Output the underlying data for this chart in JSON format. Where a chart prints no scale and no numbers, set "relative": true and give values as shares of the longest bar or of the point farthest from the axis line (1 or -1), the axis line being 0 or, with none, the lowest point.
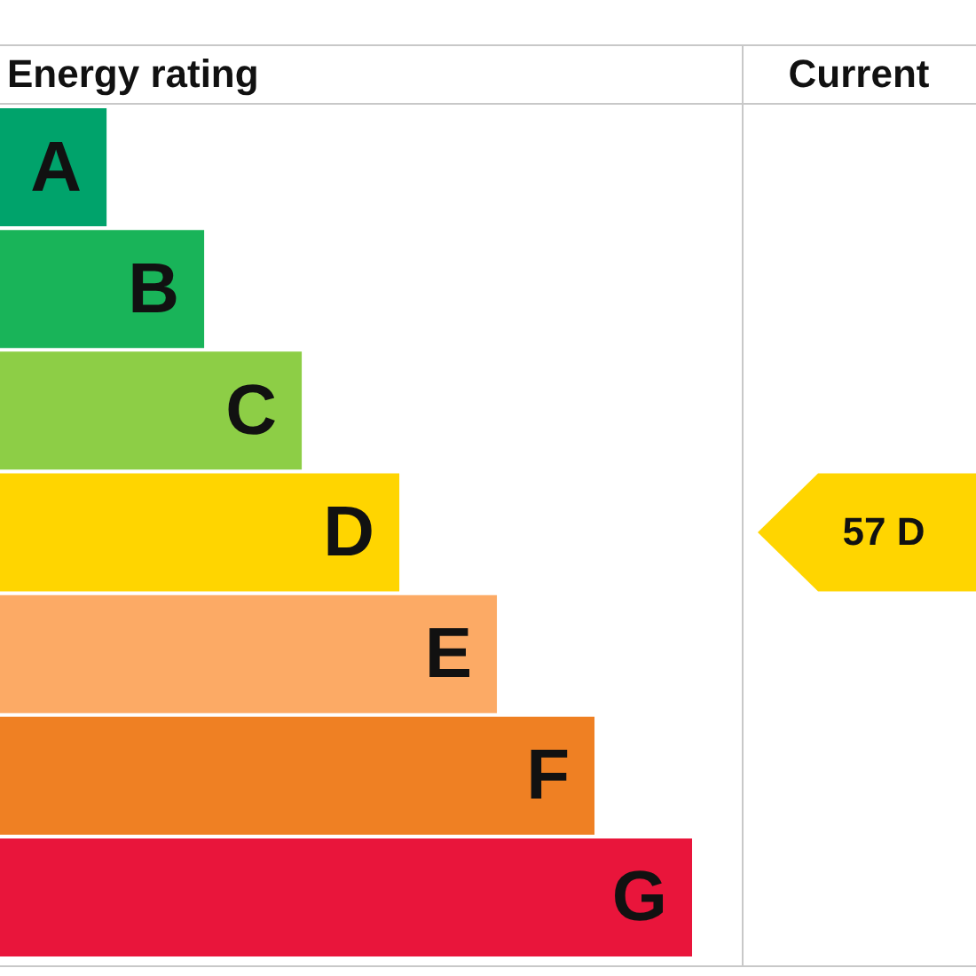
{
  "chart_data": {
    "type": "bar",
    "orientation": "horizontal",
    "relative": true,
    "title": "Energy rating",
    "categories": [
      "A",
      "B",
      "C",
      "D",
      "E",
      "F",
      "G"
    ],
    "values": [
      0.154,
      0.295,
      0.436,
      0.577,
      0.718,
      0.859,
      1
    ],
    "colors": [
      "#00a36b",
      "#19b459",
      "#8dce46",
      "#ffd500",
      "#fcaa65",
      "#ef8023",
      "#e9153b"
    ],
    "annotations": [
      "Current",
      "57 D"
    ],
    "legend": false
  }
}
